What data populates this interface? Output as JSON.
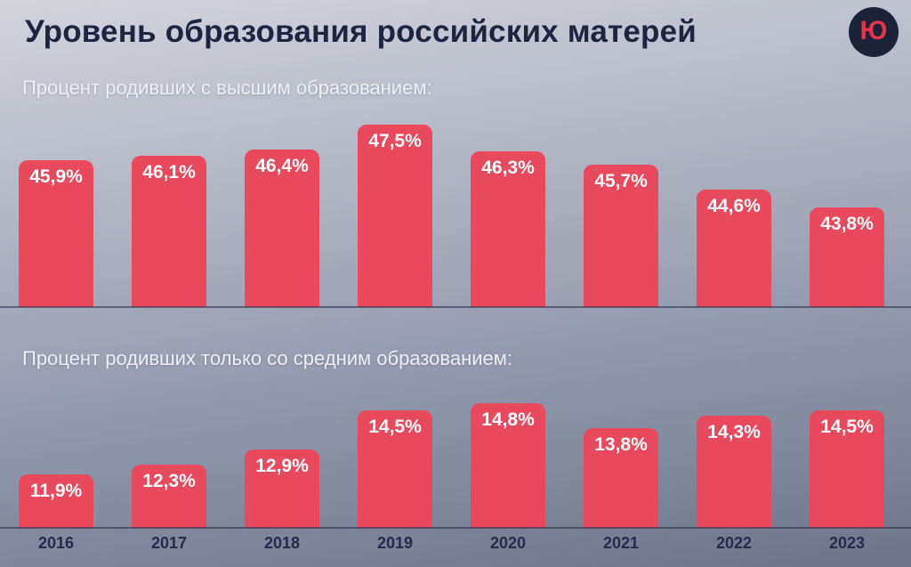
{
  "header": {
    "title": "Уровень образования российских матерей",
    "logo_letter": "Ю"
  },
  "colors": {
    "bar": "#e8495c",
    "title_text": "#1f2540",
    "section_text": "#eef0f5",
    "year_text": "#262c47",
    "logo_background": "#1c2238",
    "logo_letter": "#e8334d"
  },
  "chart_data": [
    {
      "type": "bar",
      "title": "Процент родивших с высшим образованием:",
      "categories": [
        "2016",
        "2017",
        "2018",
        "2019",
        "2020",
        "2021",
        "2022",
        "2023"
      ],
      "values": [
        45.9,
        46.1,
        46.4,
        47.5,
        46.3,
        45.7,
        44.6,
        43.8
      ],
      "value_labels": [
        "45,9%",
        "46,1%",
        "46,4%",
        "47,5%",
        "46,3%",
        "45,7%",
        "44,6%",
        "43,8%"
      ],
      "unit": "%",
      "xlabel": "",
      "ylabel": "",
      "legend": "none",
      "grid": false,
      "ylim": [
        0,
        50
      ]
    },
    {
      "type": "bar",
      "title": "Процент родивших только со средним образованием:",
      "categories": [
        "2016",
        "2017",
        "2018",
        "2019",
        "2020",
        "2021",
        "2022",
        "2023"
      ],
      "values": [
        11.9,
        12.3,
        12.9,
        14.5,
        14.8,
        13.8,
        14.3,
        14.5
      ],
      "value_labels": [
        "11,9%",
        "12,3%",
        "12,9%",
        "14,5%",
        "14,8%",
        "13,8%",
        "14,3%",
        "14,5%"
      ],
      "unit": "%",
      "xlabel": "",
      "ylabel": "",
      "legend": "none",
      "grid": false,
      "ylim": [
        0,
        16
      ]
    }
  ],
  "x_axis": {
    "categories": [
      "2016",
      "2017",
      "2018",
      "2019",
      "2020",
      "2021",
      "2022",
      "2023"
    ]
  }
}
